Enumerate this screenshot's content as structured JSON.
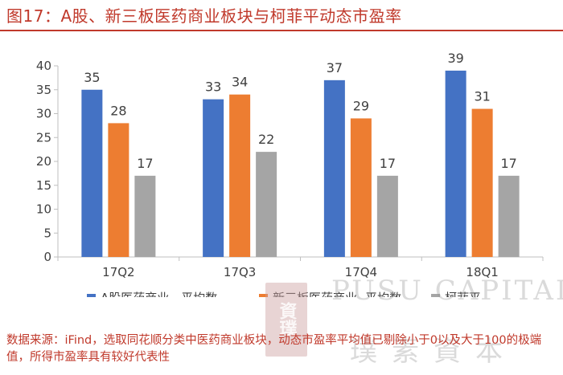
{
  "title": "图17：A股、新三板医药商业板块与柯菲平动态市盈率",
  "source": "数据来源：iFind，选取同花顺分类中医药商业板块，动态市盈率平均值已剔除小于0以及大于100的极端值，所得市盈率具有较好代表性",
  "watermark": {
    "text": "PUSU CAPITAL",
    "cjk": "璞素資本",
    "seal": "資璞"
  },
  "chart_data": {
    "type": "bar",
    "categories": [
      "17Q2",
      "17Q3",
      "17Q4",
      "18Q1"
    ],
    "series": [
      {
        "name": "A股医药商业 - 平均数",
        "color": "#4472C4",
        "values": [
          35,
          33,
          37,
          39
        ],
        "labels": [
          "35",
          "33",
          "37",
          "39"
        ]
      },
      {
        "name": "新三板医药商业- 平均数",
        "color": "#ED7D31",
        "values": [
          28,
          34,
          29,
          31
        ],
        "labels": [
          "28",
          "34",
          "29",
          "31"
        ]
      },
      {
        "name": "柯菲平",
        "color": "#A5A5A5",
        "values": [
          17,
          22,
          17,
          17
        ],
        "labels": [
          "17",
          "22",
          "17",
          "17"
        ]
      }
    ],
    "yticks": [
      "0",
      "5",
      "10",
      "15",
      "20",
      "25",
      "30",
      "35",
      "40"
    ],
    "ylim": [
      0,
      40
    ],
    "grid": false,
    "legend_position": "bottom"
  }
}
